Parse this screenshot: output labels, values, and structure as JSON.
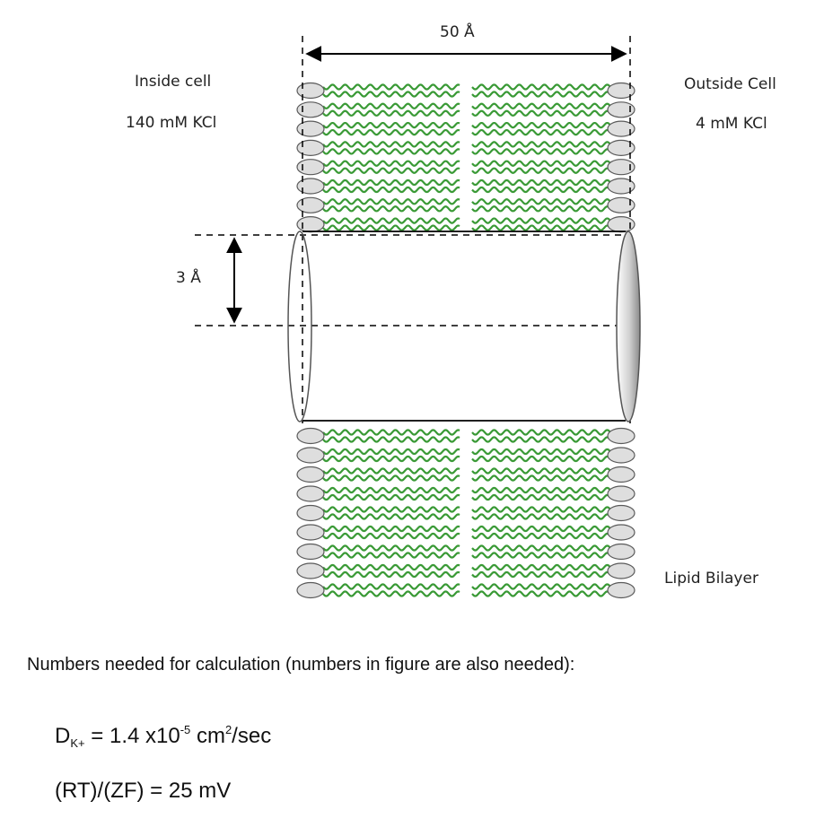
{
  "labels": {
    "top_width": "50 Å",
    "pore_diameter": "3 Å",
    "inside_title": "Inside cell",
    "inside_conc": "140 mM KCl",
    "outside_title": "Outside Cell",
    "outside_conc": "4 mM KCl",
    "bilayer": "Lipid Bilayer"
  },
  "note": "Numbers needed for calculation (numbers in figure are also needed):",
  "equations": {
    "diffusion": {
      "symbol": "D",
      "subscript": "K+",
      "prefix": "= 1.4 x10",
      "exponent": "-5",
      "unit_base": "cm",
      "unit_exp": "2",
      "unit_tail": "/sec"
    },
    "rt_zf": "(RT)/(ZF) = 25 mV"
  },
  "colors": {
    "lipid_tail": "#3a9a36",
    "head_fill": "#dedede",
    "head_stroke": "#5a5a5a",
    "line": "#000000"
  }
}
